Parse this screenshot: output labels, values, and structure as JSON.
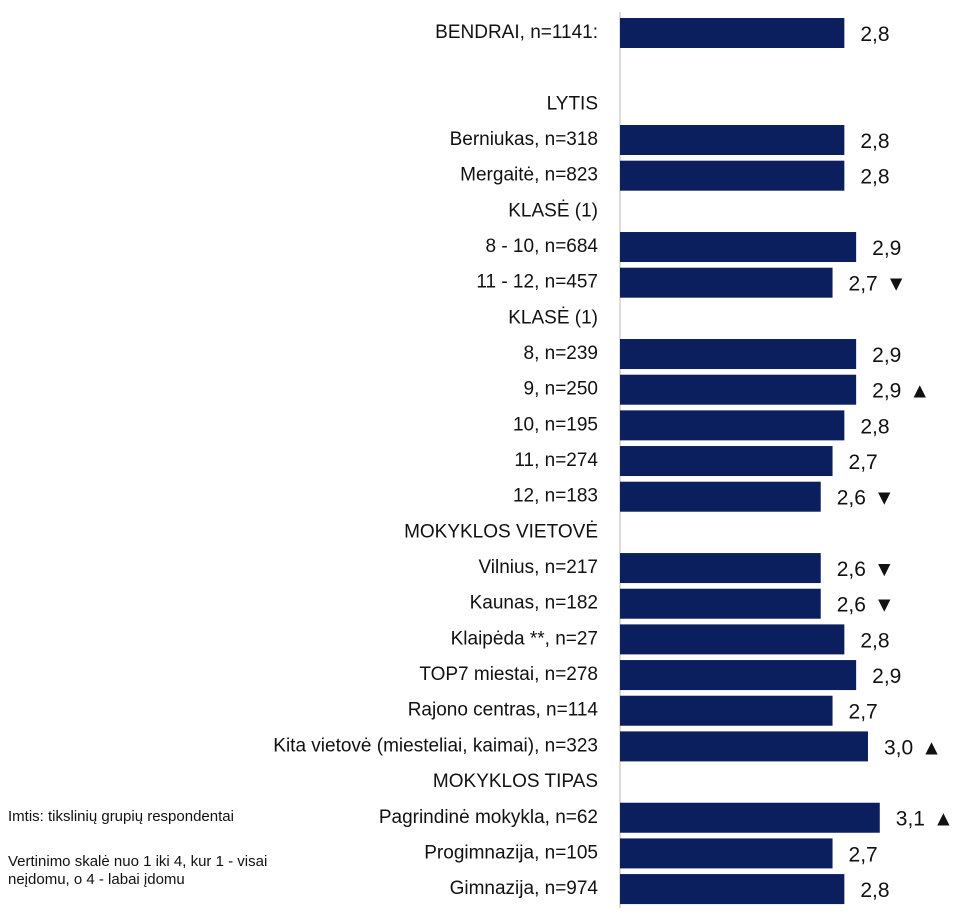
{
  "chart_data": {
    "type": "barh",
    "categories": [
      "BENDRAI, n=1141:",
      null,
      "LYTIS",
      "Berniukas, n=318",
      "Mergaitė, n=823",
      "KLASĖ (1)",
      "8 - 10, n=684",
      "11 - 12, n=457",
      "KLASĖ (1)",
      "8, n=239",
      "9, n=250",
      "10, n=195",
      "11, n=274",
      "12, n=183",
      "MOKYKLOS VIETOVĖ",
      "Vilnius, n=217",
      "Kaunas, n=182",
      "Klaipėda **, n=27",
      "TOP7 miestai, n=278",
      "Rajono centras, n=114",
      "Kita vietovė (miesteliai, kaimai), n=323",
      "MOKYKLOS TIPAS",
      "Pagrindinė mokykla, n=62",
      "Progimnazija, n=105",
      "Gimnazija, n=974"
    ],
    "values": [
      2.8,
      null,
      null,
      2.8,
      2.8,
      null,
      2.9,
      2.7,
      null,
      2.9,
      2.9,
      2.8,
      2.7,
      2.6,
      null,
      2.6,
      2.6,
      2.8,
      2.9,
      2.7,
      3.0,
      null,
      3.1,
      2.7,
      2.8
    ],
    "value_labels": [
      "2,8",
      null,
      null,
      "2,8",
      "2,8",
      null,
      "2,9",
      "2,7",
      null,
      "2,9",
      "2,9",
      "2,8",
      "2,7",
      "2,6",
      null,
      "2,6",
      "2,6",
      "2,8",
      "2,9",
      "2,7",
      "3,0",
      null,
      "3,1",
      "2,7",
      "2,8"
    ],
    "significance": [
      null,
      null,
      null,
      null,
      null,
      null,
      null,
      "▼",
      null,
      null,
      "▲",
      null,
      null,
      "▼",
      null,
      "▼",
      "▼",
      null,
      null,
      null,
      "▲",
      null,
      "▲",
      null,
      null
    ],
    "color": "#0b1f5e",
    "xlim": [
      0.9,
      3.5
    ],
    "notes": [
      "Imtis: tikslinių grupių respondentai",
      "Vertinimo skalė nuo 1 iki 4, kur 1 - visai neįdomu, o 4 - labai įdomu"
    ]
  }
}
